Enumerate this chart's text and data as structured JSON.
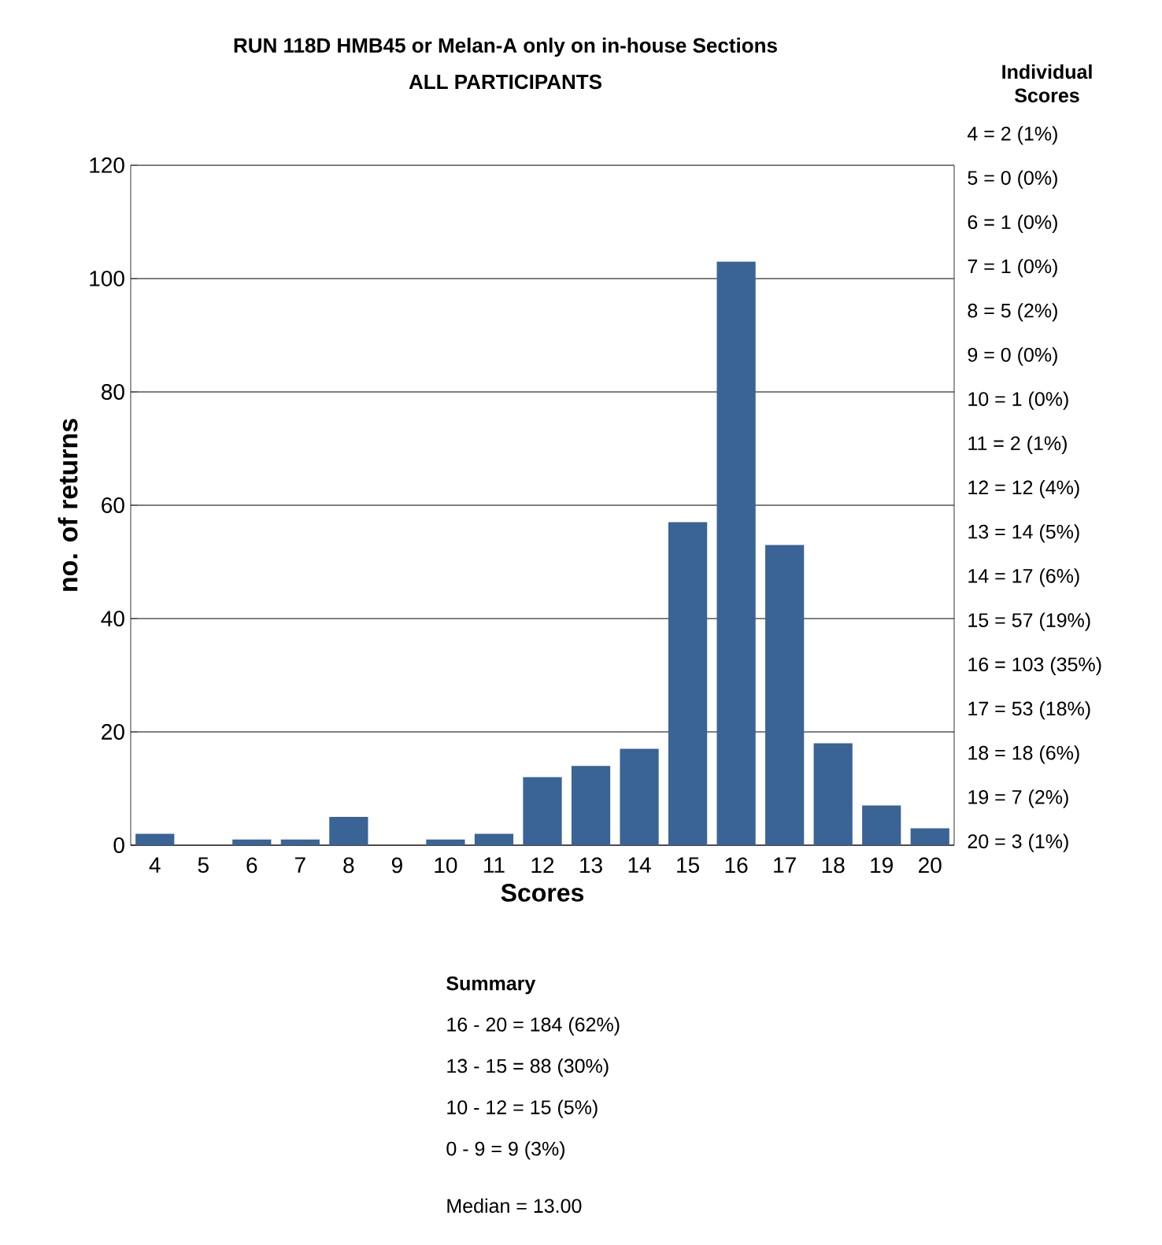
{
  "chart_data": {
    "type": "bar",
    "title": "RUN 118D HMB45 or Melan-A only on in-house Sections",
    "subtitle": "ALL PARTICIPANTS",
    "xlabel": "Scores",
    "ylabel": "no. of returns",
    "categories": [
      "4",
      "5",
      "6",
      "7",
      "8",
      "9",
      "10",
      "11",
      "12",
      "13",
      "14",
      "15",
      "16",
      "17",
      "18",
      "19",
      "20"
    ],
    "values": [
      2,
      0,
      1,
      1,
      5,
      0,
      1,
      2,
      12,
      14,
      17,
      57,
      103,
      53,
      18,
      7,
      3
    ],
    "color": "#3a6396",
    "ylim": [
      0,
      120
    ],
    "yticks": [
      0,
      20,
      40,
      60,
      80,
      100,
      120
    ],
    "grid": "y",
    "annotations": [
      "Individual Scores",
      "4 = 2 (1%)",
      "5 = 0 (0%)",
      "6 = 1 (0%)",
      "7 = 1 (0%)",
      "8 = 5 (2%)",
      "9 = 0 (0%)",
      "10 = 1 (0%)",
      "11 = 2 (1%)",
      "12 = 12 (4%)",
      "13 = 14 (5%)",
      "14 = 17 (6%)",
      "15 = 57 (19%)",
      "16 = 103 (35%)",
      "17 = 53 (18%)",
      "18 = 18 (6%)",
      "19 = 7 (2%)",
      "20 = 3 (1%)",
      "Summary",
      "16 - 20 = 184 (62%)",
      "13 - 15 = 88 (30%)",
      "10 - 12 = 15 (5%)",
      "0 - 9 = 9 (3%)",
      "Median = 13.00"
    ]
  }
}
